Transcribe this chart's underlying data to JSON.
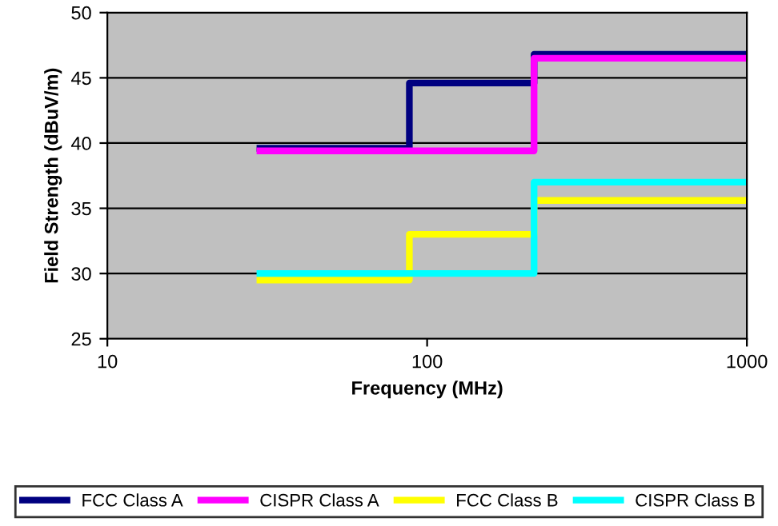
{
  "chart_data": {
    "type": "step",
    "xlabel": "Frequency (MHz)",
    "ylabel": "Field Strength (dBuV/m)",
    "log": "x",
    "xlim": [
      10,
      1000
    ],
    "xticks": [
      10,
      100,
      1000
    ],
    "ylim": [
      25,
      50
    ],
    "yticks": [
      25,
      30,
      35,
      40,
      45,
      50
    ],
    "grid": "y",
    "legend": "bottom",
    "line_style": "solid",
    "marker": "none",
    "series": [
      {
        "name": "FCC Class A",
        "color": "#000080",
        "x": [
          30,
          88,
          216,
          1000
        ],
        "values": [
          39.6,
          44.6,
          46.8,
          46.8
        ]
      },
      {
        "name": "CISPR Class A",
        "color": "#ff00ff",
        "x": [
          30,
          88,
          216,
          1000
        ],
        "values": [
          39.4,
          39.4,
          46.5,
          46.5
        ]
      },
      {
        "name": "FCC Class B",
        "color": "#ffff00",
        "x": [
          30,
          88,
          216,
          1000
        ],
        "values": [
          29.5,
          33.0,
          35.6,
          35.6
        ]
      },
      {
        "name": "CISPR Class B",
        "color": "#00ffff",
        "x": [
          30,
          88,
          216,
          1000
        ],
        "values": [
          30.0,
          30.0,
          37.0,
          37.0
        ]
      }
    ]
  }
}
